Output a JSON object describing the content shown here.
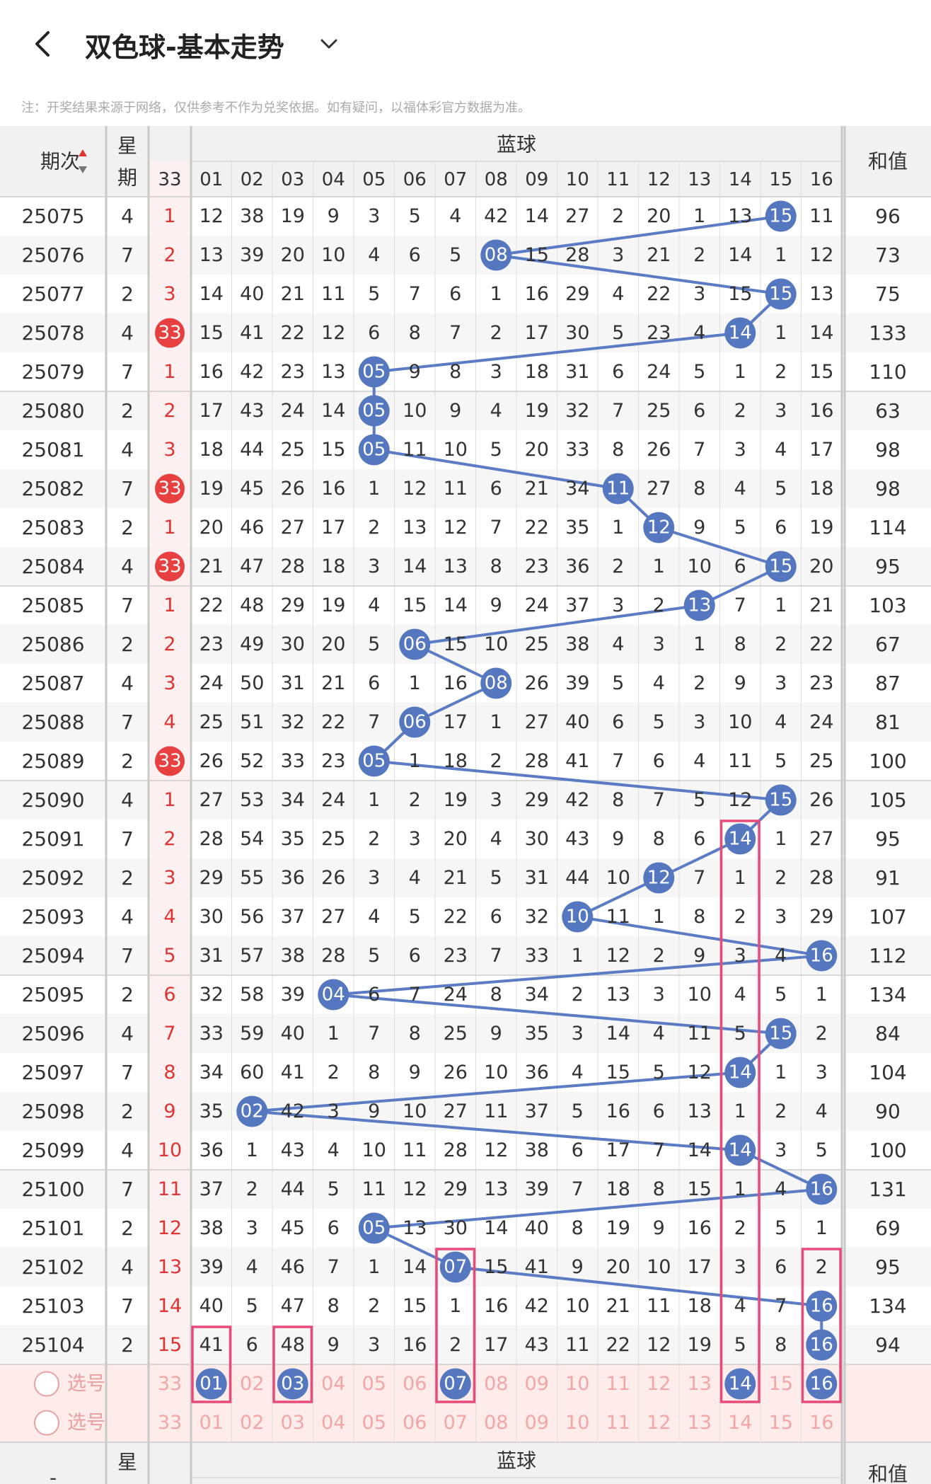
{
  "header": {
    "title": "双色球-基本走势"
  },
  "notice": "注：开奖结果来源于网络，仅供参考不作为兑奖依据。如有疑问，以福体彩官方数据为准。",
  "table": {
    "col_issue": "期次",
    "col_week_1": "星",
    "col_week_2": "期",
    "col_blue": "蓝球",
    "col_sum": "和值",
    "col_33": "33",
    "blue_headers": [
      "01",
      "02",
      "03",
      "04",
      "05",
      "06",
      "07",
      "08",
      "09",
      "10",
      "11",
      "12",
      "13",
      "14",
      "15",
      "16"
    ],
    "rows": [
      {
        "issue": "25075",
        "week": "4",
        "r33": "1",
        "cells": [
          "12",
          "38",
          "19",
          "9",
          "3",
          "5",
          "4",
          "42",
          "14",
          "27",
          "2",
          "20",
          "1",
          "13",
          "15",
          "11"
        ],
        "blue": 15,
        "sum": "96"
      },
      {
        "issue": "25076",
        "week": "7",
        "r33": "2",
        "cells": [
          "13",
          "39",
          "20",
          "10",
          "4",
          "6",
          "5",
          "08",
          "15",
          "28",
          "3",
          "21",
          "2",
          "14",
          "1",
          "12"
        ],
        "blue": 8,
        "sum": "73"
      },
      {
        "issue": "25077",
        "week": "2",
        "r33": "3",
        "cells": [
          "14",
          "40",
          "21",
          "11",
          "5",
          "7",
          "6",
          "1",
          "16",
          "29",
          "4",
          "22",
          "3",
          "15",
          "15",
          "13"
        ],
        "blue": 15,
        "sum": "75"
      },
      {
        "issue": "25078",
        "week": "4",
        "r33": "33",
        "cells": [
          "15",
          "41",
          "22",
          "12",
          "6",
          "8",
          "7",
          "2",
          "17",
          "30",
          "5",
          "23",
          "4",
          "14",
          "1",
          "14"
        ],
        "blue": 14,
        "sum": "133"
      },
      {
        "issue": "25079",
        "week": "7",
        "r33": "1",
        "cells": [
          "16",
          "42",
          "23",
          "13",
          "05",
          "9",
          "8",
          "3",
          "18",
          "31",
          "6",
          "24",
          "5",
          "1",
          "2",
          "15"
        ],
        "blue": 5,
        "sum": "110"
      },
      {
        "issue": "25080",
        "week": "2",
        "r33": "2",
        "cells": [
          "17",
          "43",
          "24",
          "14",
          "05",
          "10",
          "9",
          "4",
          "19",
          "32",
          "7",
          "25",
          "6",
          "2",
          "3",
          "16"
        ],
        "blue": 5,
        "sum": "63"
      },
      {
        "issue": "25081",
        "week": "4",
        "r33": "3",
        "cells": [
          "18",
          "44",
          "25",
          "15",
          "05",
          "11",
          "10",
          "5",
          "20",
          "33",
          "8",
          "26",
          "7",
          "3",
          "4",
          "17"
        ],
        "blue": 5,
        "sum": "98"
      },
      {
        "issue": "25082",
        "week": "7",
        "r33": "33",
        "cells": [
          "19",
          "45",
          "26",
          "16",
          "1",
          "12",
          "11",
          "6",
          "21",
          "34",
          "11",
          "27",
          "8",
          "4",
          "5",
          "18"
        ],
        "blue": 11,
        "sum": "98"
      },
      {
        "issue": "25083",
        "week": "2",
        "r33": "1",
        "cells": [
          "20",
          "46",
          "27",
          "17",
          "2",
          "13",
          "12",
          "7",
          "22",
          "35",
          "1",
          "12",
          "9",
          "5",
          "6",
          "19"
        ],
        "blue": 12,
        "sum": "114"
      },
      {
        "issue": "25084",
        "week": "4",
        "r33": "33",
        "cells": [
          "21",
          "47",
          "28",
          "18",
          "3",
          "14",
          "13",
          "8",
          "23",
          "36",
          "2",
          "1",
          "10",
          "6",
          "15",
          "20"
        ],
        "blue": 15,
        "sum": "95"
      },
      {
        "issue": "25085",
        "week": "7",
        "r33": "1",
        "cells": [
          "22",
          "48",
          "29",
          "19",
          "4",
          "15",
          "14",
          "9",
          "24",
          "37",
          "3",
          "2",
          "13",
          "7",
          "1",
          "21"
        ],
        "blue": 13,
        "sum": "103"
      },
      {
        "issue": "25086",
        "week": "2",
        "r33": "2",
        "cells": [
          "23",
          "49",
          "30",
          "20",
          "5",
          "06",
          "15",
          "10",
          "25",
          "38",
          "4",
          "3",
          "1",
          "8",
          "2",
          "22"
        ],
        "blue": 6,
        "sum": "67"
      },
      {
        "issue": "25087",
        "week": "4",
        "r33": "3",
        "cells": [
          "24",
          "50",
          "31",
          "21",
          "6",
          "1",
          "16",
          "08",
          "26",
          "39",
          "5",
          "4",
          "2",
          "9",
          "3",
          "23"
        ],
        "blue": 8,
        "sum": "87"
      },
      {
        "issue": "25088",
        "week": "7",
        "r33": "4",
        "cells": [
          "25",
          "51",
          "32",
          "22",
          "7",
          "06",
          "17",
          "1",
          "27",
          "40",
          "6",
          "5",
          "3",
          "10",
          "4",
          "24"
        ],
        "blue": 6,
        "sum": "81"
      },
      {
        "issue": "25089",
        "week": "2",
        "r33": "33",
        "cells": [
          "26",
          "52",
          "33",
          "23",
          "05",
          "1",
          "18",
          "2",
          "28",
          "41",
          "7",
          "6",
          "4",
          "11",
          "5",
          "25"
        ],
        "blue": 5,
        "sum": "100"
      },
      {
        "issue": "25090",
        "week": "4",
        "r33": "1",
        "cells": [
          "27",
          "53",
          "34",
          "24",
          "1",
          "2",
          "19",
          "3",
          "29",
          "42",
          "8",
          "7",
          "5",
          "12",
          "15",
          "26"
        ],
        "blue": 15,
        "sum": "105"
      },
      {
        "issue": "25091",
        "week": "7",
        "r33": "2",
        "cells": [
          "28",
          "54",
          "35",
          "25",
          "2",
          "3",
          "20",
          "4",
          "30",
          "43",
          "9",
          "8",
          "6",
          "14",
          "1",
          "27"
        ],
        "blue": 14,
        "sum": "95"
      },
      {
        "issue": "25092",
        "week": "2",
        "r33": "3",
        "cells": [
          "29",
          "55",
          "36",
          "26",
          "3",
          "4",
          "21",
          "5",
          "31",
          "44",
          "10",
          "12",
          "7",
          "1",
          "2",
          "28"
        ],
        "blue": 12,
        "sum": "91"
      },
      {
        "issue": "25093",
        "week": "4",
        "r33": "4",
        "cells": [
          "30",
          "56",
          "37",
          "27",
          "4",
          "5",
          "22",
          "6",
          "32",
          "10",
          "11",
          "1",
          "8",
          "2",
          "3",
          "29"
        ],
        "blue": 10,
        "sum": "107"
      },
      {
        "issue": "25094",
        "week": "7",
        "r33": "5",
        "cells": [
          "31",
          "57",
          "38",
          "28",
          "5",
          "6",
          "23",
          "7",
          "33",
          "1",
          "12",
          "2",
          "9",
          "3",
          "4",
          "16"
        ],
        "blue": 16,
        "sum": "112"
      },
      {
        "issue": "25095",
        "week": "2",
        "r33": "6",
        "cells": [
          "32",
          "58",
          "39",
          "04",
          "6",
          "7",
          "24",
          "8",
          "34",
          "2",
          "13",
          "3",
          "10",
          "4",
          "5",
          "1"
        ],
        "blue": 4,
        "sum": "134"
      },
      {
        "issue": "25096",
        "week": "4",
        "r33": "7",
        "cells": [
          "33",
          "59",
          "40",
          "1",
          "7",
          "8",
          "25",
          "9",
          "35",
          "3",
          "14",
          "4",
          "11",
          "5",
          "15",
          "2"
        ],
        "blue": 15,
        "sum": "84"
      },
      {
        "issue": "25097",
        "week": "7",
        "r33": "8",
        "cells": [
          "34",
          "60",
          "41",
          "2",
          "8",
          "9",
          "26",
          "10",
          "36",
          "4",
          "15",
          "5",
          "12",
          "14",
          "1",
          "3"
        ],
        "blue": 14,
        "sum": "104"
      },
      {
        "issue": "25098",
        "week": "2",
        "r33": "9",
        "cells": [
          "35",
          "02",
          "42",
          "3",
          "9",
          "10",
          "27",
          "11",
          "37",
          "5",
          "16",
          "6",
          "13",
          "1",
          "2",
          "4"
        ],
        "blue": 2,
        "sum": "90"
      },
      {
        "issue": "25099",
        "week": "4",
        "r33": "10",
        "cells": [
          "36",
          "1",
          "43",
          "4",
          "10",
          "11",
          "28",
          "12",
          "38",
          "6",
          "17",
          "7",
          "14",
          "14",
          "3",
          "5"
        ],
        "blue": 14,
        "sum": "100"
      },
      {
        "issue": "25100",
        "week": "7",
        "r33": "11",
        "cells": [
          "37",
          "2",
          "44",
          "5",
          "11",
          "12",
          "29",
          "13",
          "39",
          "7",
          "18",
          "8",
          "15",
          "1",
          "4",
          "16"
        ],
        "blue": 16,
        "sum": "131"
      },
      {
        "issue": "25101",
        "week": "2",
        "r33": "12",
        "cells": [
          "38",
          "3",
          "45",
          "6",
          "05",
          "13",
          "30",
          "14",
          "40",
          "8",
          "19",
          "9",
          "16",
          "2",
          "5",
          "1"
        ],
        "blue": 5,
        "sum": "69"
      },
      {
        "issue": "25102",
        "week": "4",
        "r33": "13",
        "cells": [
          "39",
          "4",
          "46",
          "7",
          "1",
          "14",
          "07",
          "15",
          "41",
          "9",
          "20",
          "10",
          "17",
          "3",
          "6",
          "2"
        ],
        "blue": 7,
        "sum": "95"
      },
      {
        "issue": "25103",
        "week": "7",
        "r33": "14",
        "cells": [
          "40",
          "5",
          "47",
          "8",
          "2",
          "15",
          "1",
          "16",
          "42",
          "10",
          "21",
          "11",
          "18",
          "4",
          "7",
          "16"
        ],
        "blue": 16,
        "sum": "134"
      },
      {
        "issue": "25104",
        "week": "2",
        "r33": "15",
        "cells": [
          "41",
          "6",
          "48",
          "9",
          "3",
          "16",
          "2",
          "17",
          "43",
          "11",
          "22",
          "12",
          "19",
          "5",
          "8",
          "16"
        ],
        "blue": 16,
        "sum": "94"
      }
    ],
    "select_label": "选号",
    "select_row1": [
      "33",
      "01",
      "02",
      "03",
      "04",
      "05",
      "06",
      "07",
      "08",
      "09",
      "10",
      "11",
      "12",
      "13",
      "14",
      "15",
      "16"
    ],
    "select_row2": [
      "33",
      "01",
      "02",
      "03",
      "04",
      "05",
      "06",
      "07",
      "08",
      "09",
      "10",
      "11",
      "12",
      "13",
      "14",
      "15",
      "16"
    ],
    "selected_row1": [
      "01",
      "03",
      "07",
      "14",
      "16"
    ],
    "footer_week": "星",
    "footer_blue": "蓝球",
    "footer_sum": "和值",
    "footer_issue": "-"
  },
  "colors": {
    "blue_ball": "#5577c0",
    "red_ball": "#e84040",
    "red_text": "#e03434",
    "pink_box": "#e84a7a",
    "line": "#5b7bc4",
    "header_bg": "#f1f1f1",
    "stripe_bg": "#f6f6f6",
    "select_bg": "#fdecea",
    "select_text": "#f2a6a6"
  }
}
